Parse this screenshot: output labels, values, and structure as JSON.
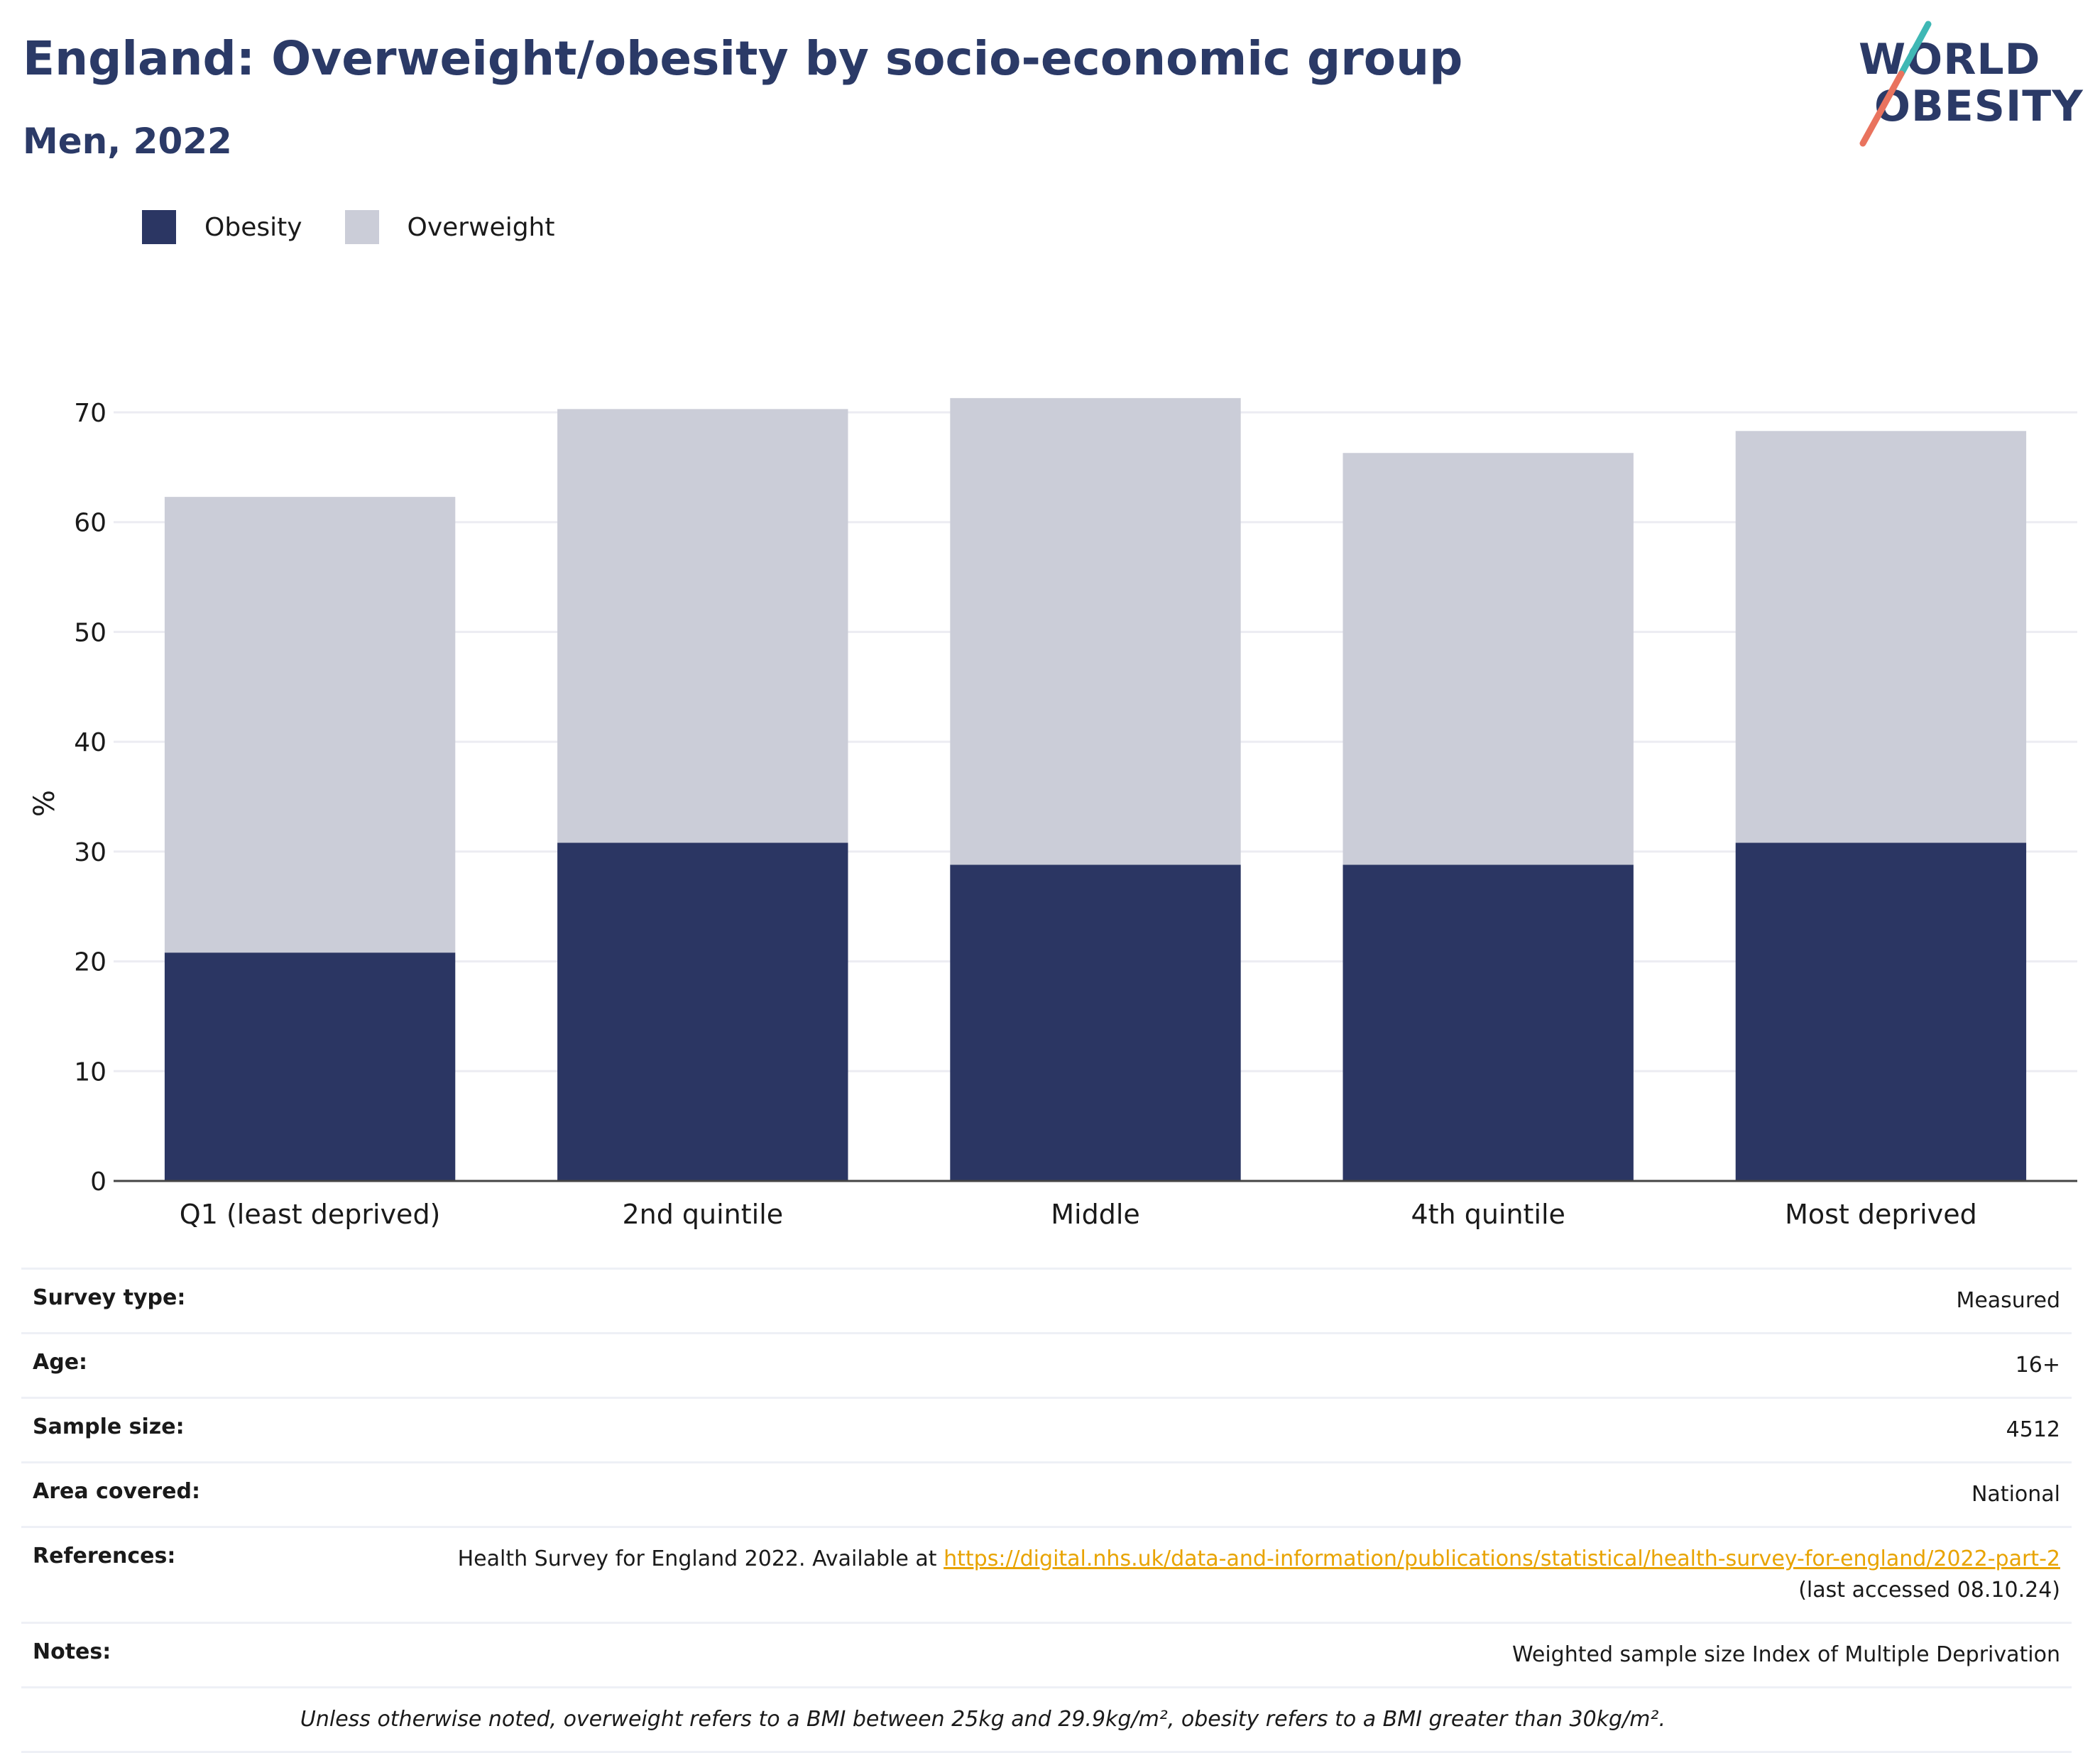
{
  "title": "England: Overweight/obesity by socio-economic group",
  "subtitle": "Men, 2022",
  "logo": {
    "line1": "WORLD",
    "line2": "OBESITY"
  },
  "colors": {
    "obesity": "#2b3663",
    "overweight": "#cbcdd8",
    "title": "#2b3a67",
    "link": "#e8a300",
    "logo_teal": "#3fb8b5",
    "logo_coral": "#e9735e"
  },
  "chart_data": {
    "type": "bar",
    "stacked": true,
    "categories": [
      "Q1 (least deprived)",
      "2nd quintile",
      "Middle",
      "4th quintile",
      "Most deprived"
    ],
    "series": [
      {
        "name": "Obesity",
        "values": [
          20.8,
          30.8,
          28.8,
          28.8,
          30.8
        ]
      },
      {
        "name": "Overweight",
        "values": [
          41.5,
          39.5,
          42.5,
          37.5,
          37.5
        ]
      }
    ],
    "ylabel": "%",
    "ylim": [
      0,
      70
    ],
    "yticks": [
      0,
      10,
      20,
      30,
      40,
      50,
      60,
      70
    ],
    "grid": true,
    "legend_position": "top-left"
  },
  "info": {
    "survey_type": {
      "label": "Survey type:",
      "value": "Measured"
    },
    "age": {
      "label": "Age:",
      "value": "16+"
    },
    "sample_size": {
      "label": "Sample size:",
      "value": "4512"
    },
    "area": {
      "label": "Area covered:",
      "value": "National"
    },
    "references": {
      "label": "References:",
      "prefix": "Health Survey for England 2022. Available at ",
      "link": "https://digital.nhs.uk/data-and-information/publications/statistical/health-survey-for-england/2022-part-2",
      "suffix": " (last accessed 08.10.24)"
    },
    "notes": {
      "label": "Notes:",
      "value": "Weighted sample size Index of Multiple Deprivation"
    },
    "footnote": "Unless otherwise noted, overweight refers to a BMI between 25kg and 29.9kg/m², obesity refers to a BMI greater than 30kg/m²."
  }
}
